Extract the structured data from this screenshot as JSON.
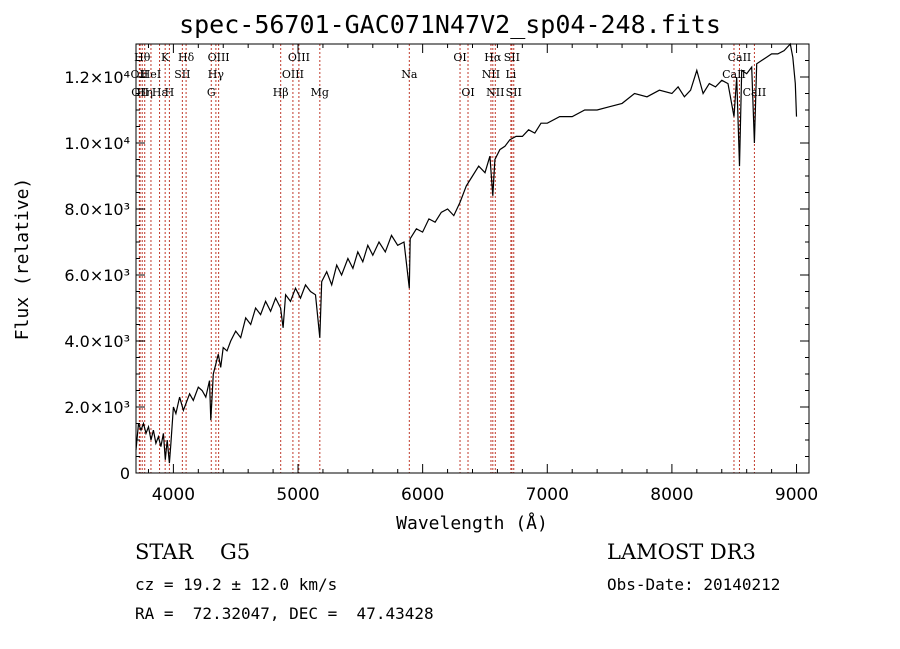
{
  "title": "spec-56701-GAC071N47V2_sp04-248.fits",
  "info": {
    "class": "STAR",
    "subclass": "G5",
    "survey": "LAMOST DR3",
    "cz": "cz = 19.2 ± 12.0 km/s",
    "obs_date": "Obs-Date: 20140212",
    "radec": "RA =  72.32047, DEC =  47.43428"
  },
  "chart_data": {
    "type": "line",
    "title": "spec-56701-GAC071N47V2_sp04-248.fits",
    "xlabel": "Wavelength (Å)",
    "ylabel": "Flux (relative)",
    "xlim": [
      3700,
      9100
    ],
    "ylim": [
      0,
      13000
    ],
    "x_ticks": [
      {
        "value": 4000,
        "label": "4000"
      },
      {
        "value": 5000,
        "label": "5000"
      },
      {
        "value": 6000,
        "label": "6000"
      },
      {
        "value": 7000,
        "label": "7000"
      },
      {
        "value": 8000,
        "label": "8000"
      },
      {
        "value": 9000,
        "label": "9000"
      }
    ],
    "y_ticks": [
      {
        "value": 0,
        "label": "0"
      },
      {
        "value": 2000,
        "label": "2.0×10³"
      },
      {
        "value": 4000,
        "label": "4.0×10³"
      },
      {
        "value": 6000,
        "label": "6.0×10³"
      },
      {
        "value": 8000,
        "label": "8.0×10³"
      },
      {
        "value": 10000,
        "label": "1.0×10⁴"
      },
      {
        "value": 12000,
        "label": "1.2×10⁴"
      }
    ],
    "grid": false,
    "legend": "none",
    "series": [
      {
        "name": "flux",
        "x": [
          3700,
          3720,
          3740,
          3760,
          3780,
          3800,
          3820,
          3840,
          3860,
          3880,
          3900,
          3920,
          3935,
          3950,
          3968,
          3980,
          4000,
          4020,
          4050,
          4080,
          4100,
          4130,
          4160,
          4200,
          4230,
          4260,
          4290,
          4300,
          4320,
          4340,
          4360,
          4380,
          4400,
          4430,
          4460,
          4500,
          4540,
          4580,
          4620,
          4660,
          4700,
          4740,
          4780,
          4820,
          4860,
          4880,
          4900,
          4940,
          4980,
          5020,
          5060,
          5100,
          5140,
          5175,
          5190,
          5230,
          5270,
          5310,
          5350,
          5400,
          5440,
          5480,
          5520,
          5560,
          5600,
          5650,
          5700,
          5750,
          5800,
          5850,
          5893,
          5900,
          5950,
          6000,
          6050,
          6100,
          6150,
          6200,
          6250,
          6300,
          6350,
          6400,
          6450,
          6500,
          6540,
          6563,
          6580,
          6620,
          6660,
          6700,
          6750,
          6800,
          6850,
          6900,
          6950,
          7000,
          7100,
          7200,
          7300,
          7400,
          7500,
          7600,
          7700,
          7800,
          7900,
          8000,
          8050,
          8100,
          8150,
          8200,
          8250,
          8300,
          8350,
          8400,
          8450,
          8498,
          8520,
          8542,
          8560,
          8600,
          8640,
          8662,
          8680,
          8720,
          8760,
          8800,
          8850,
          8900,
          8950,
          8970,
          8990,
          9000
        ],
        "y": [
          700,
          1500,
          1300,
          1500,
          1200,
          1400,
          1000,
          1300,
          900,
          1100,
          800,
          1200,
          400,
          1000,
          300,
          900,
          2000,
          1800,
          2300,
          1900,
          2100,
          2400,
          2200,
          2600,
          2500,
          2300,
          2800,
          1600,
          3000,
          3300,
          3600,
          3200,
          3800,
          3700,
          4000,
          4300,
          4100,
          4700,
          4500,
          5000,
          4800,
          5200,
          4900,
          5300,
          5000,
          4400,
          5400,
          5200,
          5600,
          5300,
          5700,
          5500,
          5400,
          4100,
          5800,
          6100,
          5700,
          6300,
          6000,
          6500,
          6200,
          6700,
          6400,
          6900,
          6600,
          7000,
          6700,
          7200,
          6900,
          7000,
          5600,
          7100,
          7400,
          7300,
          7700,
          7600,
          7900,
          8000,
          7800,
          8200,
          8700,
          9000,
          9300,
          9100,
          9600,
          8400,
          9500,
          9800,
          9900,
          10100,
          10200,
          10200,
          10400,
          10300,
          10600,
          10600,
          10800,
          10800,
          11000,
          11000,
          11100,
          11200,
          11500,
          11400,
          11600,
          11500,
          11700,
          11400,
          11600,
          12200,
          11500,
          11800,
          11700,
          11900,
          11800,
          10800,
          12000,
          9300,
          12200,
          12100,
          12300,
          10000,
          12400,
          12500,
          12600,
          12700,
          12700,
          12800,
          13000,
          12600,
          11800,
          10800
        ]
      }
    ],
    "spectral_lines": [
      {
        "wavelength": 3727,
        "labels": [
          "OII"
        ],
        "pos": "upper",
        "row": 1
      },
      {
        "wavelength": 3750,
        "labels": [
          "Hθ"
        ],
        "pos": "upper",
        "row": 0
      },
      {
        "wavelength": 3733,
        "labels": [
          "OII"
        ],
        "pos": "lower",
        "row": 0
      },
      {
        "wavelength": 3770,
        "labels": [
          "Hη"
        ],
        "pos": "lower",
        "row": 0
      },
      {
        "wavelength": 3820,
        "labels": [
          "HeI"
        ],
        "pos": "upper",
        "row": 1
      },
      {
        "wavelength": 3889,
        "labels": [
          "Hε"
        ],
        "pos": "lower",
        "row": 0
      },
      {
        "wavelength": 3934,
        "labels": [
          "K"
        ],
        "pos": "upper",
        "row": 0
      },
      {
        "wavelength": 3968,
        "labels": [
          "H"
        ],
        "pos": "lower",
        "row": 0
      },
      {
        "wavelength": 4072,
        "labels": [
          "SII"
        ],
        "pos": "upper",
        "row": 1
      },
      {
        "wavelength": 4102,
        "labels": [
          "Hδ"
        ],
        "pos": "upper",
        "row": 0
      },
      {
        "wavelength": 4304,
        "labels": [
          "G"
        ],
        "pos": "lower",
        "row": 0
      },
      {
        "wavelength": 4341,
        "labels": [
          "Hγ"
        ],
        "pos": "upper",
        "row": 1
      },
      {
        "wavelength": 4363,
        "labels": [
          "OIII"
        ],
        "pos": "upper",
        "row": 0
      },
      {
        "wavelength": 4861,
        "labels": [
          "Hβ"
        ],
        "pos": "lower",
        "row": 0
      },
      {
        "wavelength": 4959,
        "labels": [
          "OIII"
        ],
        "pos": "upper",
        "row": 1
      },
      {
        "wavelength": 5007,
        "labels": [
          "OIII"
        ],
        "pos": "upper",
        "row": 0
      },
      {
        "wavelength": 5175,
        "labels": [
          "Mg"
        ],
        "pos": "lower",
        "row": 0
      },
      {
        "wavelength": 5893,
        "labels": [
          "Na"
        ],
        "pos": "upper",
        "row": 1
      },
      {
        "wavelength": 6300,
        "labels": [
          "OI"
        ],
        "pos": "upper",
        "row": 0
      },
      {
        "wavelength": 6364,
        "labels": [
          "OI"
        ],
        "pos": "lower",
        "row": 0
      },
      {
        "wavelength": 6548,
        "labels": [
          "NII"
        ],
        "pos": "upper",
        "row": 1
      },
      {
        "wavelength": 6563,
        "labels": [
          "Hα"
        ],
        "pos": "upper",
        "row": 0
      },
      {
        "wavelength": 6583,
        "labels": [
          "NII"
        ],
        "pos": "lower",
        "row": 0
      },
      {
        "wavelength": 6708,
        "labels": [
          "Li"
        ],
        "pos": "upper",
        "row": 1
      },
      {
        "wavelength": 6716,
        "labels": [
          "SII"
        ],
        "pos": "upper",
        "row": 0
      },
      {
        "wavelength": 6731,
        "labels": [
          "SII"
        ],
        "pos": "lower",
        "row": 0
      },
      {
        "wavelength": 8498,
        "labels": [
          "CaII"
        ],
        "pos": "upper",
        "row": 1
      },
      {
        "wavelength": 8542,
        "labels": [
          "CaII"
        ],
        "pos": "upper",
        "row": 0
      },
      {
        "wavelength": 8662,
        "labels": [
          "CaII"
        ],
        "pos": "lower",
        "row": 0
      }
    ]
  }
}
